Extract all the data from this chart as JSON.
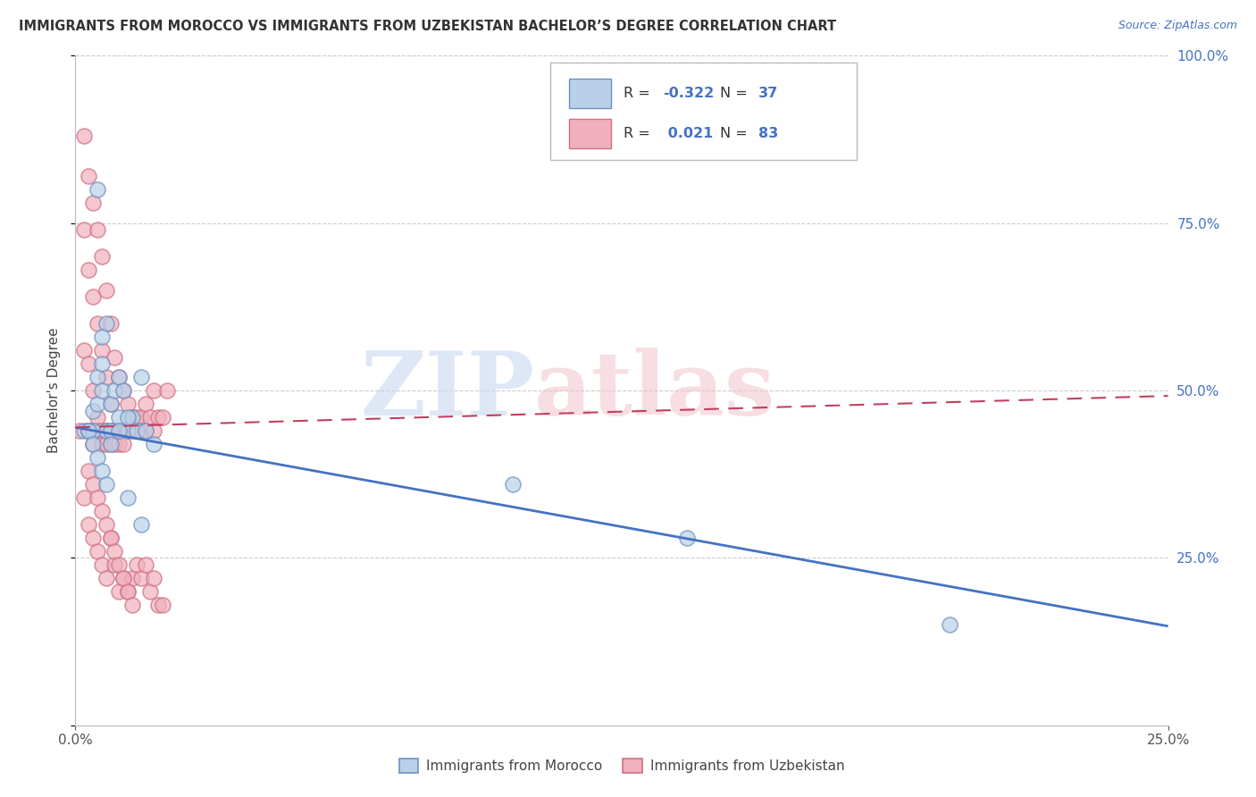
{
  "title": "IMMIGRANTS FROM MOROCCO VS IMMIGRANTS FROM UZBEKISTAN BACHELOR’S DEGREE CORRELATION CHART",
  "source": "Source: ZipAtlas.com",
  "ylabel": "Bachelor's Degree",
  "morocco_R": -0.322,
  "morocco_N": 37,
  "uzbekistan_R": 0.021,
  "uzbekistan_N": 83,
  "morocco_color": "#b8d0e8",
  "uzbekistan_color": "#f0b0be",
  "morocco_edge_color": "#7090c0",
  "uzbekistan_edge_color": "#d07080",
  "morocco_line_color": "#4472c4",
  "uzbekistan_line_color": "#c04060",
  "legend_label_morocco": "Immigrants from Morocco",
  "legend_label_uzbekistan": "Immigrants from Uzbekistan",
  "xlim": [
    0,
    0.25
  ],
  "ylim": [
    0,
    1.0
  ],
  "yticks": [
    0.0,
    0.25,
    0.5,
    0.75,
    1.0
  ],
  "ytick_labels": [
    "",
    "25.0%",
    "50.0%",
    "75.0%",
    "100.0%"
  ],
  "background_color": "#ffffff",
  "grid_color": "#cccccc",
  "title_color": "#333333",
  "axis_label_color": "#4472c4",
  "watermark_zip_color": "#c8d8f0",
  "watermark_atlas_color": "#f0c8d0",
  "morocco_scatter_x": [
    0.002,
    0.003,
    0.004,
    0.004,
    0.005,
    0.005,
    0.006,
    0.006,
    0.007,
    0.007,
    0.008,
    0.008,
    0.009,
    0.01,
    0.01,
    0.011,
    0.012,
    0.013,
    0.014,
    0.015,
    0.003,
    0.004,
    0.005,
    0.006,
    0.007,
    0.008,
    0.01,
    0.012,
    0.015,
    0.018,
    0.005,
    0.006,
    0.012,
    0.016,
    0.1,
    0.14,
    0.2
  ],
  "morocco_scatter_y": [
    0.44,
    0.44,
    0.47,
    0.44,
    0.52,
    0.48,
    0.54,
    0.5,
    0.6,
    0.44,
    0.44,
    0.48,
    0.5,
    0.46,
    0.52,
    0.5,
    0.44,
    0.46,
    0.44,
    0.52,
    0.44,
    0.42,
    0.4,
    0.38,
    0.36,
    0.42,
    0.44,
    0.34,
    0.3,
    0.42,
    0.8,
    0.58,
    0.46,
    0.44,
    0.36,
    0.28,
    0.15
  ],
  "uzbekistan_scatter_x": [
    0.001,
    0.002,
    0.002,
    0.002,
    0.003,
    0.003,
    0.003,
    0.003,
    0.004,
    0.004,
    0.004,
    0.004,
    0.005,
    0.005,
    0.005,
    0.005,
    0.006,
    0.006,
    0.006,
    0.006,
    0.007,
    0.007,
    0.007,
    0.007,
    0.008,
    0.008,
    0.008,
    0.008,
    0.009,
    0.009,
    0.009,
    0.01,
    0.01,
    0.01,
    0.011,
    0.011,
    0.011,
    0.012,
    0.012,
    0.013,
    0.013,
    0.014,
    0.014,
    0.015,
    0.015,
    0.016,
    0.016,
    0.017,
    0.018,
    0.018,
    0.019,
    0.02,
    0.021,
    0.002,
    0.003,
    0.004,
    0.005,
    0.006,
    0.007,
    0.008,
    0.009,
    0.01,
    0.011,
    0.012,
    0.013,
    0.014,
    0.015,
    0.016,
    0.017,
    0.018,
    0.019,
    0.02,
    0.003,
    0.004,
    0.005,
    0.006,
    0.007,
    0.008,
    0.009,
    0.01,
    0.011,
    0.012,
    0.013
  ],
  "uzbekistan_scatter_y": [
    0.44,
    0.88,
    0.74,
    0.56,
    0.82,
    0.68,
    0.54,
    0.44,
    0.78,
    0.64,
    0.5,
    0.42,
    0.74,
    0.6,
    0.46,
    0.44,
    0.7,
    0.56,
    0.44,
    0.42,
    0.65,
    0.52,
    0.44,
    0.42,
    0.6,
    0.48,
    0.44,
    0.42,
    0.55,
    0.44,
    0.42,
    0.52,
    0.44,
    0.42,
    0.5,
    0.44,
    0.42,
    0.48,
    0.44,
    0.46,
    0.44,
    0.46,
    0.44,
    0.46,
    0.44,
    0.48,
    0.44,
    0.46,
    0.5,
    0.44,
    0.46,
    0.46,
    0.5,
    0.34,
    0.3,
    0.28,
    0.26,
    0.24,
    0.22,
    0.28,
    0.24,
    0.2,
    0.22,
    0.2,
    0.22,
    0.24,
    0.22,
    0.24,
    0.2,
    0.22,
    0.18,
    0.18,
    0.38,
    0.36,
    0.34,
    0.32,
    0.3,
    0.28,
    0.26,
    0.24,
    0.22,
    0.2,
    0.18
  ]
}
